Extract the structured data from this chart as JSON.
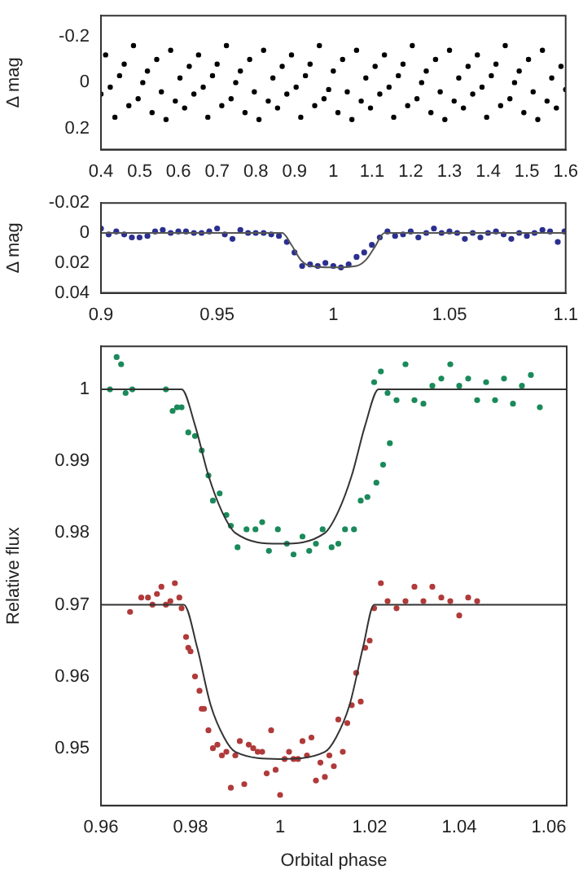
{
  "chart_data": [
    {
      "type": "scatter",
      "ylabel": "Δ mag",
      "xlim": [
        0.4,
        1.6
      ],
      "ylim": [
        0.29,
        -0.29
      ],
      "xticks": [
        0.4,
        0.5,
        0.6,
        0.7,
        0.8,
        0.9,
        1,
        1.1,
        1.2,
        1.3,
        1.4,
        1.5,
        1.6
      ],
      "yticks": [
        -0.2,
        0,
        0.2
      ],
      "marker": "circle",
      "grid": false,
      "series": [
        {
          "color": "#000000",
          "x": [
            0.4,
            0.412,
            0.424,
            0.436,
            0.448,
            0.46,
            0.472,
            0.484,
            0.496,
            0.508,
            0.52,
            0.532,
            0.544,
            0.556,
            0.568,
            0.58,
            0.592,
            0.604,
            0.616,
            0.628,
            0.64,
            0.652,
            0.664,
            0.676,
            0.688,
            0.7,
            0.712,
            0.724,
            0.736,
            0.748,
            0.76,
            0.772,
            0.784,
            0.796,
            0.808,
            0.82,
            0.832,
            0.844,
            0.856,
            0.868,
            0.88,
            0.892,
            0.904,
            0.916,
            0.928,
            0.94,
            0.952,
            0.964,
            0.976,
            0.988,
            1,
            1.012,
            1.024,
            1.036,
            1.048,
            1.06,
            1.072,
            1.084,
            1.096,
            1.108,
            1.12,
            1.132,
            1.144,
            1.156,
            1.168,
            1.18,
            1.192,
            1.204,
            1.216,
            1.228,
            1.24,
            1.252,
            1.264,
            1.276,
            1.288,
            1.3,
            1.312,
            1.324,
            1.336,
            1.348,
            1.36,
            1.372,
            1.384,
            1.396,
            1.408,
            1.42,
            1.432,
            1.444,
            1.456,
            1.468,
            1.48,
            1.492,
            1.504,
            1.516,
            1.528,
            1.54,
            1.552,
            1.564,
            1.576,
            1.588,
            1.6
          ],
          "values": [
            0.05,
            -0.12,
            0.02,
            0.15,
            -0.03,
            -0.08,
            0.1,
            -0.16,
            0.07,
            0,
            -0.05,
            0.13,
            -0.1,
            0.04,
            0.16,
            -0.14,
            0.08,
            -0.02,
            0.11,
            -0.07,
            0.05,
            -0.12,
            0.02,
            0.15,
            -0.03,
            -0.08,
            0.1,
            -0.16,
            0.07,
            0,
            -0.05,
            0.13,
            -0.1,
            0.04,
            0.16,
            -0.14,
            0.08,
            -0.02,
            0.11,
            -0.07,
            0.05,
            -0.12,
            0.02,
            0.15,
            -0.03,
            -0.08,
            0.1,
            -0.16,
            0.07,
            0.03,
            -0.05,
            0.13,
            -0.1,
            0.04,
            0.16,
            -0.14,
            0.08,
            -0.02,
            0.11,
            -0.07,
            0.05,
            -0.12,
            0.02,
            0.15,
            -0.03,
            -0.08,
            0.1,
            -0.16,
            0.07,
            0,
            -0.05,
            0.13,
            -0.1,
            0.04,
            0.16,
            -0.14,
            0.08,
            -0.02,
            0.11,
            -0.07,
            0.05,
            -0.12,
            0.02,
            0.15,
            -0.03,
            -0.08,
            0.1,
            -0.16,
            0.07,
            0,
            -0.05,
            0.13,
            -0.1,
            0.04,
            0.16,
            -0.14,
            0.08,
            -0.02,
            0.11,
            -0.07,
            0.03
          ]
        }
      ]
    },
    {
      "type": "scatter",
      "ylabel": "Δ mag",
      "xlim": [
        0.9,
        1.1
      ],
      "ylim": [
        0.04,
        -0.02
      ],
      "xticks": [
        0.9,
        0.95,
        1,
        1.05,
        1.1
      ],
      "yticks": [
        -0.02,
        0,
        0.02,
        0.04
      ],
      "marker": "circle",
      "grid": false,
      "series": [
        {
          "color": "#2b2f8f",
          "x": [
            0.9,
            0.9033,
            0.9066,
            0.91,
            0.9133,
            0.9166,
            0.92,
            0.9233,
            0.9266,
            0.93,
            0.9333,
            0.9366,
            0.94,
            0.9433,
            0.9466,
            0.95,
            0.9533,
            0.9566,
            0.96,
            0.9633,
            0.9666,
            0.97,
            0.9733,
            0.9766,
            0.98,
            0.9833,
            0.9866,
            0.99,
            0.9933,
            0.9966,
            1,
            1.0033,
            1.0066,
            1.01,
            1.0133,
            1.0166,
            1.02,
            1.0233,
            1.0266,
            1.03,
            1.0333,
            1.0366,
            1.04,
            1.0433,
            1.0466,
            1.05,
            1.0533,
            1.0566,
            1.06,
            1.0633,
            1.0666,
            1.07,
            1.0733,
            1.0766,
            1.08,
            1.0833,
            1.0866,
            1.09,
            1.0933,
            1.0966,
            1.0995
          ],
          "values": [
            -0.003,
            0.001,
            -0.001,
            0.001,
            0.003,
            0.003,
            0.002,
            -0.001,
            -0.002,
            0,
            -0.001,
            -0.001,
            0,
            0,
            -0.001,
            -0.003,
            0.001,
            0.004,
            -0.002,
            0,
            0,
            0,
            0.001,
            0.002,
            0.006,
            0.013,
            0.022,
            0.021,
            0.022,
            0.02,
            0.022,
            0.023,
            0.021,
            0.016,
            0.013,
            0.008,
            0.003,
            -0.001,
            0.002,
            0.001,
            -0.001,
            0.003,
            0,
            -0.003,
            0,
            -0.001,
            0,
            0.004,
            0,
            0.003,
            0,
            -0.001,
            0.001,
            0.004,
            0,
            0.002,
            0,
            -0.002,
            -0.001,
            0.006,
            -0.001
          ]
        },
        {
          "type": "line",
          "marker": "none",
          "color": "#555555",
          "x": [
            0.9,
            0.978,
            0.982,
            0.986,
            0.99,
            1,
            1.01,
            1.014,
            1.018,
            1.022,
            1.1
          ],
          "values": [
            0,
            0,
            0.008,
            0.018,
            0.022,
            0.023,
            0.022,
            0.018,
            0.009,
            0,
            0
          ]
        }
      ]
    },
    {
      "type": "scatter",
      "xlabel": "Orbital phase",
      "ylabel": "Relative flux",
      "xlim": [
        0.96,
        1.064
      ],
      "ylim": [
        0.942,
        1.006
      ],
      "xticks": [
        0.96,
        0.98,
        1,
        1.02,
        1.04,
        1.06
      ],
      "yticks": [
        0.95,
        0.96,
        0.97,
        0.98,
        0.99,
        1
      ],
      "marker": "circle",
      "grid": false,
      "series": [
        {
          "color": "#1a8a5a",
          "x": [
            0.962,
            0.9635,
            0.9645,
            0.9655,
            0.967,
            0.9745,
            0.976,
            0.977,
            0.978,
            0.9795,
            0.981,
            0.9825,
            0.984,
            0.985,
            0.9865,
            0.988,
            0.989,
            0.9905,
            0.9925,
            0.9945,
            0.996,
            0.9975,
            0.9995,
            1.0015,
            1.003,
            1.005,
            1.0065,
            1.008,
            1.0095,
            1.0115,
            1.013,
            1.0145,
            1.0165,
            1.018,
            1.0195,
            1.0215,
            1.023,
            1.0245,
            1.021,
            1.0225,
            1.024,
            1.026,
            1.028,
            1.03,
            1.032,
            1.034,
            1.036,
            1.038,
            1.04,
            1.042,
            1.044,
            1.046,
            1.048,
            1.05,
            1.052,
            1.054,
            1.056,
            1.058
          ],
          "values": [
            1,
            1.0045,
            1.0035,
            0.9995,
            1,
            1,
            0.997,
            0.9975,
            0.9975,
            0.994,
            0.9935,
            0.9915,
            0.988,
            0.9845,
            0.9855,
            0.9825,
            0.981,
            0.978,
            0.9805,
            0.9805,
            0.9815,
            0.9775,
            0.9805,
            0.9785,
            0.977,
            0.9795,
            0.9775,
            0.9785,
            0.9805,
            0.978,
            0.9785,
            0.9805,
            0.9805,
            0.9845,
            0.985,
            0.987,
            0.9895,
            0.9925,
            1.001,
            1.0025,
            0.9995,
            0.9985,
            1.0035,
            0.9985,
            0.998,
            1.0005,
            1.0015,
            1.0035,
            1.0005,
            1.0015,
            0.9985,
            1.001,
            0.9985,
            1.0015,
            0.998,
            1.0005,
            1.002,
            0.9975
          ]
        },
        {
          "color": "#b03a3a",
          "x": [
            0.9665,
            0.969,
            0.9705,
            0.9715,
            0.9725,
            0.9735,
            0.9745,
            0.9755,
            0.9765,
            0.9775,
            0.978,
            0.979,
            0.9795,
            0.98,
            0.981,
            0.982,
            0.9825,
            0.983,
            0.984,
            0.985,
            0.986,
            0.987,
            0.988,
            0.989,
            0.99,
            0.991,
            0.992,
            0.993,
            0.994,
            0.995,
            0.996,
            0.997,
            0.998,
            0.999,
            1,
            1.001,
            1.002,
            1.003,
            1.004,
            1.005,
            1.006,
            1.007,
            1.008,
            1.009,
            1.01,
            1.011,
            1.012,
            1.013,
            1.014,
            1.015,
            1.016,
            1.017,
            1.018,
            1.019,
            1.02,
            1.021,
            1.0225,
            1.024,
            1.026,
            1.028,
            1.03,
            1.032,
            1.034,
            1.036,
            1.038,
            1.04,
            1.042,
            1.044
          ],
          "values": [
            0.969,
            0.971,
            0.971,
            0.97,
            0.9715,
            0.9725,
            0.97,
            0.9705,
            0.973,
            0.971,
            0.9695,
            0.9655,
            0.964,
            0.9635,
            0.96,
            0.958,
            0.9555,
            0.9555,
            0.9525,
            0.95,
            0.9505,
            0.949,
            0.9495,
            0.9445,
            0.949,
            0.951,
            0.945,
            0.9505,
            0.95,
            0.9495,
            0.9495,
            0.9465,
            0.9525,
            0.947,
            0.9435,
            0.9485,
            0.9495,
            0.9485,
            0.9485,
            0.951,
            0.949,
            0.9515,
            0.9455,
            0.948,
            0.946,
            0.949,
            0.9475,
            0.954,
            0.9495,
            0.9535,
            0.956,
            0.9605,
            0.9565,
            0.964,
            0.965,
            0.9695,
            0.973,
            0.9705,
            0.9695,
            0.9705,
            0.9725,
            0.9705,
            0.9725,
            0.971,
            0.9705,
            0.9685,
            0.971,
            0.9705
          ]
        },
        {
          "type": "line",
          "marker": "none",
          "color": "#333333",
          "x": [
            0.96,
            0.978,
            0.981,
            0.984,
            0.987,
            0.99,
            1,
            1.01,
            1.013,
            1.016,
            1.019,
            1.022,
            1.064
          ],
          "values": [
            1,
            1,
            0.995,
            0.988,
            0.983,
            0.98,
            0.9785,
            0.98,
            0.983,
            0.988,
            0.995,
            1,
            1
          ]
        },
        {
          "type": "line",
          "marker": "none",
          "color": "#333333",
          "x": [
            0.96,
            0.9785,
            0.9815,
            0.9845,
            0.9875,
            0.99,
            1,
            1.01,
            1.0125,
            1.0155,
            1.0185,
            1.021,
            1.064
          ],
          "values": [
            0.97,
            0.97,
            0.964,
            0.956,
            0.9515,
            0.9495,
            0.9485,
            0.9495,
            0.9515,
            0.956,
            0.964,
            0.97,
            0.97
          ]
        }
      ]
    }
  ]
}
